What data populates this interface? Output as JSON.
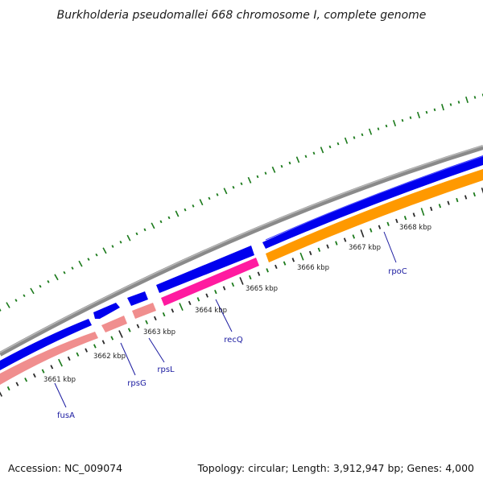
{
  "title": "Burkholderia pseudomallei 668 chromosome I, complete genome",
  "footer": {
    "accession": "Accession: NC_009074",
    "summary": "Topology: circular; Length: 3,912,947 bp; Genes: 4,000"
  },
  "tick_labels": [
    "3661 kbp",
    "3662 kbp",
    "3663 kbp",
    "3664 kbp",
    "3665 kbp",
    "3666 kbp",
    "3667 kbp",
    "3668 kbp"
  ],
  "gene_labels": [
    "fusA",
    "rpsG",
    "rpsL",
    "recQ",
    "rpoC"
  ],
  "colors": {
    "backbone": "#808080",
    "forward_cds": "#0000ee",
    "reverse_cds_light": "#f08e8e",
    "reverse_cds_magenta": "#ff1aa0",
    "reverse_cds_orange": "#ff9900",
    "gc_skew_ticks": "#1b7a1b",
    "scale_ticks": "#2a2a2a",
    "gene_label": "#1a1aa0"
  }
}
